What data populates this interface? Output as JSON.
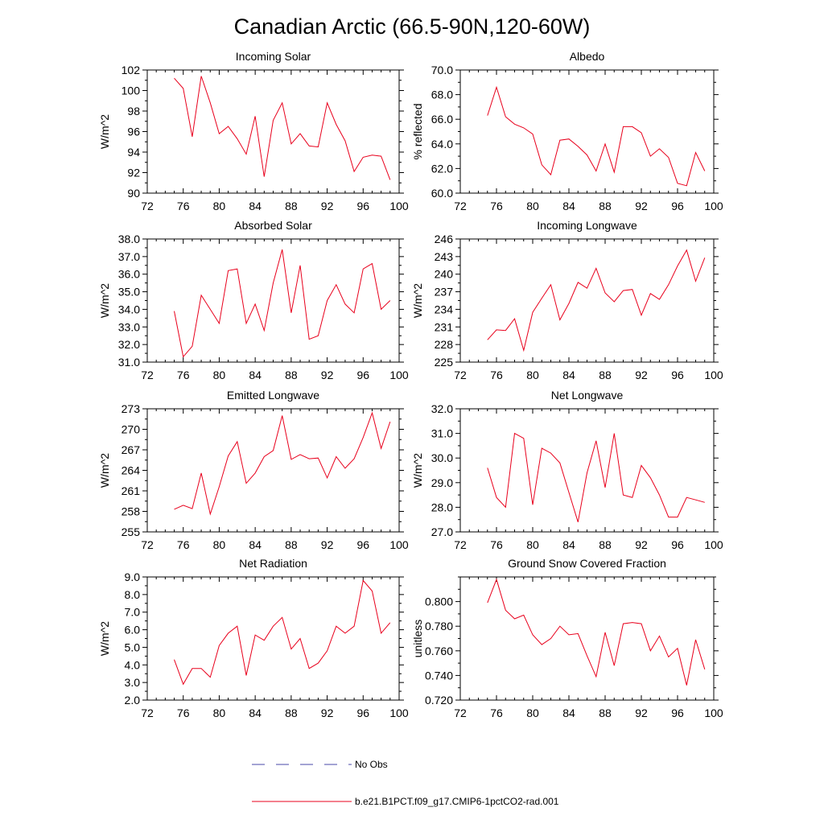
{
  "figure": {
    "title": "Canadian Arctic (66.5-90N,120-60W)",
    "legend": {
      "obs_label": "No Obs",
      "obs_color": "#4a4aa8",
      "model_label": "b.e21.B1PCT.f09_g17.CMIP6-1pctCO2-rad.001",
      "model_color": "#e8001c"
    }
  },
  "chart_data": [
    {
      "type": "line",
      "title": "Incoming Solar",
      "ylabel": "W/m^2",
      "xlim": [
        72,
        100
      ],
      "xticks": [
        72,
        76,
        80,
        84,
        88,
        92,
        96,
        100
      ],
      "ylim": [
        90,
        102
      ],
      "yticks": [
        90,
        92,
        94,
        96,
        98,
        100,
        102
      ],
      "ytick_labels": [
        "90",
        "92",
        "94",
        "96",
        "98",
        "100",
        "102"
      ],
      "x": [
        75,
        76,
        77,
        78,
        79,
        80,
        81,
        82,
        83,
        84,
        85,
        86,
        87,
        88,
        89,
        90,
        91,
        92,
        93,
        94,
        95,
        96,
        97,
        98,
        99
      ],
      "values": [
        101.2,
        100.2,
        95.5,
        101.4,
        98.8,
        95.8,
        96.5,
        95.3,
        93.8,
        97.5,
        91.6,
        97.1,
        98.8,
        94.8,
        95.8,
        94.6,
        94.5,
        98.8,
        96.7,
        95.1,
        92.1,
        93.5,
        93.7,
        93.6,
        91.3
      ]
    },
    {
      "type": "line",
      "title": "Albedo",
      "ylabel": "% reflected",
      "xlim": [
        72,
        100
      ],
      "xticks": [
        72,
        76,
        80,
        84,
        88,
        92,
        96,
        100
      ],
      "ylim": [
        60,
        70
      ],
      "yticks": [
        60,
        62,
        64,
        66,
        68,
        70
      ],
      "ytick_labels": [
        "60.0",
        "62.0",
        "64.0",
        "66.0",
        "68.0",
        "70.0"
      ],
      "x": [
        75,
        76,
        77,
        78,
        79,
        80,
        81,
        82,
        83,
        84,
        85,
        86,
        87,
        88,
        89,
        90,
        91,
        92,
        93,
        94,
        95,
        96,
        97,
        98,
        99
      ],
      "values": [
        66.3,
        68.6,
        66.2,
        65.6,
        65.3,
        64.8,
        62.3,
        61.5,
        64.3,
        64.4,
        63.8,
        63.1,
        61.8,
        64.0,
        61.7,
        65.4,
        65.4,
        64.9,
        63.0,
        63.6,
        62.9,
        60.8,
        60.6,
        63.3,
        61.8
      ]
    },
    {
      "type": "line",
      "title": "Absorbed Solar",
      "ylabel": "W/m^2",
      "xlim": [
        72,
        100
      ],
      "xticks": [
        72,
        76,
        80,
        84,
        88,
        92,
        96,
        100
      ],
      "ylim": [
        31,
        38
      ],
      "yticks": [
        31,
        32,
        33,
        34,
        35,
        36,
        37,
        38
      ],
      "ytick_labels": [
        "31.0",
        "32.0",
        "33.0",
        "34.0",
        "35.0",
        "36.0",
        "37.0",
        "38.0"
      ],
      "x": [
        75,
        76,
        77,
        78,
        79,
        80,
        81,
        82,
        83,
        84,
        85,
        86,
        87,
        88,
        89,
        90,
        91,
        92,
        93,
        94,
        95,
        96,
        97,
        98,
        99
      ],
      "values": [
        33.9,
        31.3,
        31.9,
        34.8,
        34.0,
        33.2,
        36.2,
        36.3,
        33.2,
        34.3,
        32.8,
        35.5,
        37.4,
        33.8,
        36.5,
        32.3,
        32.5,
        34.5,
        35.4,
        34.3,
        33.8,
        36.3,
        36.6,
        34.0,
        34.5
      ]
    },
    {
      "type": "line",
      "title": "Incoming Longwave",
      "ylabel": "W/m^2",
      "xlim": [
        72,
        100
      ],
      "xticks": [
        72,
        76,
        80,
        84,
        88,
        92,
        96,
        100
      ],
      "ylim": [
        225,
        246
      ],
      "yticks": [
        225,
        228,
        231,
        234,
        237,
        240,
        243,
        246
      ],
      "ytick_labels": [
        "225",
        "228",
        "231",
        "234",
        "237",
        "240",
        "243",
        "246"
      ],
      "x": [
        75,
        76,
        77,
        78,
        79,
        80,
        81,
        82,
        83,
        84,
        85,
        86,
        87,
        88,
        89,
        90,
        91,
        92,
        93,
        94,
        95,
        96,
        97,
        98,
        99
      ],
      "values": [
        228.8,
        230.5,
        230.4,
        232.4,
        227.0,
        233.5,
        235.9,
        238.2,
        232.2,
        235.0,
        238.6,
        237.6,
        241.0,
        236.8,
        235.3,
        237.2,
        237.4,
        233.0,
        236.7,
        235.7,
        238.2,
        241.4,
        244.1,
        238.8,
        242.8
      ]
    },
    {
      "type": "line",
      "title": "Emitted Longwave",
      "ylabel": "W/m^2",
      "xlim": [
        72,
        100
      ],
      "xticks": [
        72,
        76,
        80,
        84,
        88,
        92,
        96,
        100
      ],
      "ylim": [
        255,
        273
      ],
      "yticks": [
        255,
        258,
        261,
        264,
        267,
        270,
        273
      ],
      "ytick_labels": [
        "255",
        "258",
        "261",
        "264",
        "267",
        "270",
        "273"
      ],
      "x": [
        75,
        76,
        77,
        78,
        79,
        80,
        81,
        82,
        83,
        84,
        85,
        86,
        87,
        88,
        89,
        90,
        91,
        92,
        93,
        94,
        95,
        96,
        97,
        98,
        99
      ],
      "values": [
        258.3,
        258.9,
        258.4,
        263.6,
        257.6,
        261.6,
        266.1,
        268.2,
        262.1,
        263.6,
        266.0,
        266.9,
        272.0,
        265.6,
        266.3,
        265.7,
        265.8,
        262.9,
        266.0,
        264.3,
        265.7,
        268.8,
        272.4,
        267.2,
        271.1
      ]
    },
    {
      "type": "line",
      "title": "Net Longwave",
      "ylabel": "W/m^2",
      "xlim": [
        72,
        100
      ],
      "xticks": [
        72,
        76,
        80,
        84,
        88,
        92,
        96,
        100
      ],
      "ylim": [
        27,
        32
      ],
      "yticks": [
        27,
        28,
        29,
        30,
        31,
        32
      ],
      "ytick_labels": [
        "27.0",
        "28.0",
        "29.0",
        "30.0",
        "31.0",
        "32.0"
      ],
      "x": [
        75,
        76,
        77,
        78,
        79,
        80,
        81,
        82,
        83,
        84,
        85,
        86,
        87,
        88,
        89,
        90,
        91,
        92,
        93,
        94,
        95,
        96,
        97,
        98,
        99
      ],
      "values": [
        29.6,
        28.4,
        28.0,
        31.0,
        30.8,
        28.1,
        30.4,
        30.2,
        29.8,
        28.6,
        27.4,
        29.4,
        30.7,
        28.8,
        31.0,
        28.5,
        28.4,
        29.7,
        29.2,
        28.5,
        27.6,
        27.6,
        28.4,
        28.3,
        28.2
      ]
    },
    {
      "type": "line",
      "title": "Net Radiation",
      "ylabel": "W/m^2",
      "xlim": [
        72,
        100
      ],
      "xticks": [
        72,
        76,
        80,
        84,
        88,
        92,
        96,
        100
      ],
      "ylim": [
        2,
        9
      ],
      "yticks": [
        2,
        3,
        4,
        5,
        6,
        7,
        8,
        9
      ],
      "ytick_labels": [
        "2.0",
        "3.0",
        "4.0",
        "5.0",
        "6.0",
        "7.0",
        "8.0",
        "9.0"
      ],
      "x": [
        75,
        76,
        77,
        78,
        79,
        80,
        81,
        82,
        83,
        84,
        85,
        86,
        87,
        88,
        89,
        90,
        91,
        92,
        93,
        94,
        95,
        96,
        97,
        98,
        99
      ],
      "values": [
        4.3,
        2.9,
        3.8,
        3.8,
        3.3,
        5.1,
        5.8,
        6.2,
        3.4,
        5.7,
        5.4,
        6.2,
        6.7,
        4.9,
        5.5,
        3.8,
        4.1,
        4.8,
        6.2,
        5.8,
        6.2,
        8.8,
        8.2,
        5.8,
        6.4
      ]
    },
    {
      "type": "line",
      "title": "Ground Snow Covered Fraction",
      "ylabel": "unitless",
      "xlim": [
        72,
        100
      ],
      "xticks": [
        72,
        76,
        80,
        84,
        88,
        92,
        96,
        100
      ],
      "ylim": [
        0.72,
        0.82
      ],
      "yticks": [
        0.72,
        0.74,
        0.76,
        0.78,
        0.8
      ],
      "ytick_labels": [
        "0.720",
        "0.740",
        "0.760",
        "0.780",
        "0.800"
      ],
      "x": [
        75,
        76,
        77,
        78,
        79,
        80,
        81,
        82,
        83,
        84,
        85,
        86,
        87,
        88,
        89,
        90,
        91,
        92,
        93,
        94,
        95,
        96,
        97,
        98,
        99
      ],
      "values": [
        0.799,
        0.818,
        0.793,
        0.786,
        0.789,
        0.773,
        0.765,
        0.77,
        0.78,
        0.773,
        0.774,
        0.756,
        0.739,
        0.775,
        0.748,
        0.782,
        0.783,
        0.782,
        0.76,
        0.772,
        0.755,
        0.762,
        0.732,
        0.769,
        0.745
      ]
    }
  ]
}
